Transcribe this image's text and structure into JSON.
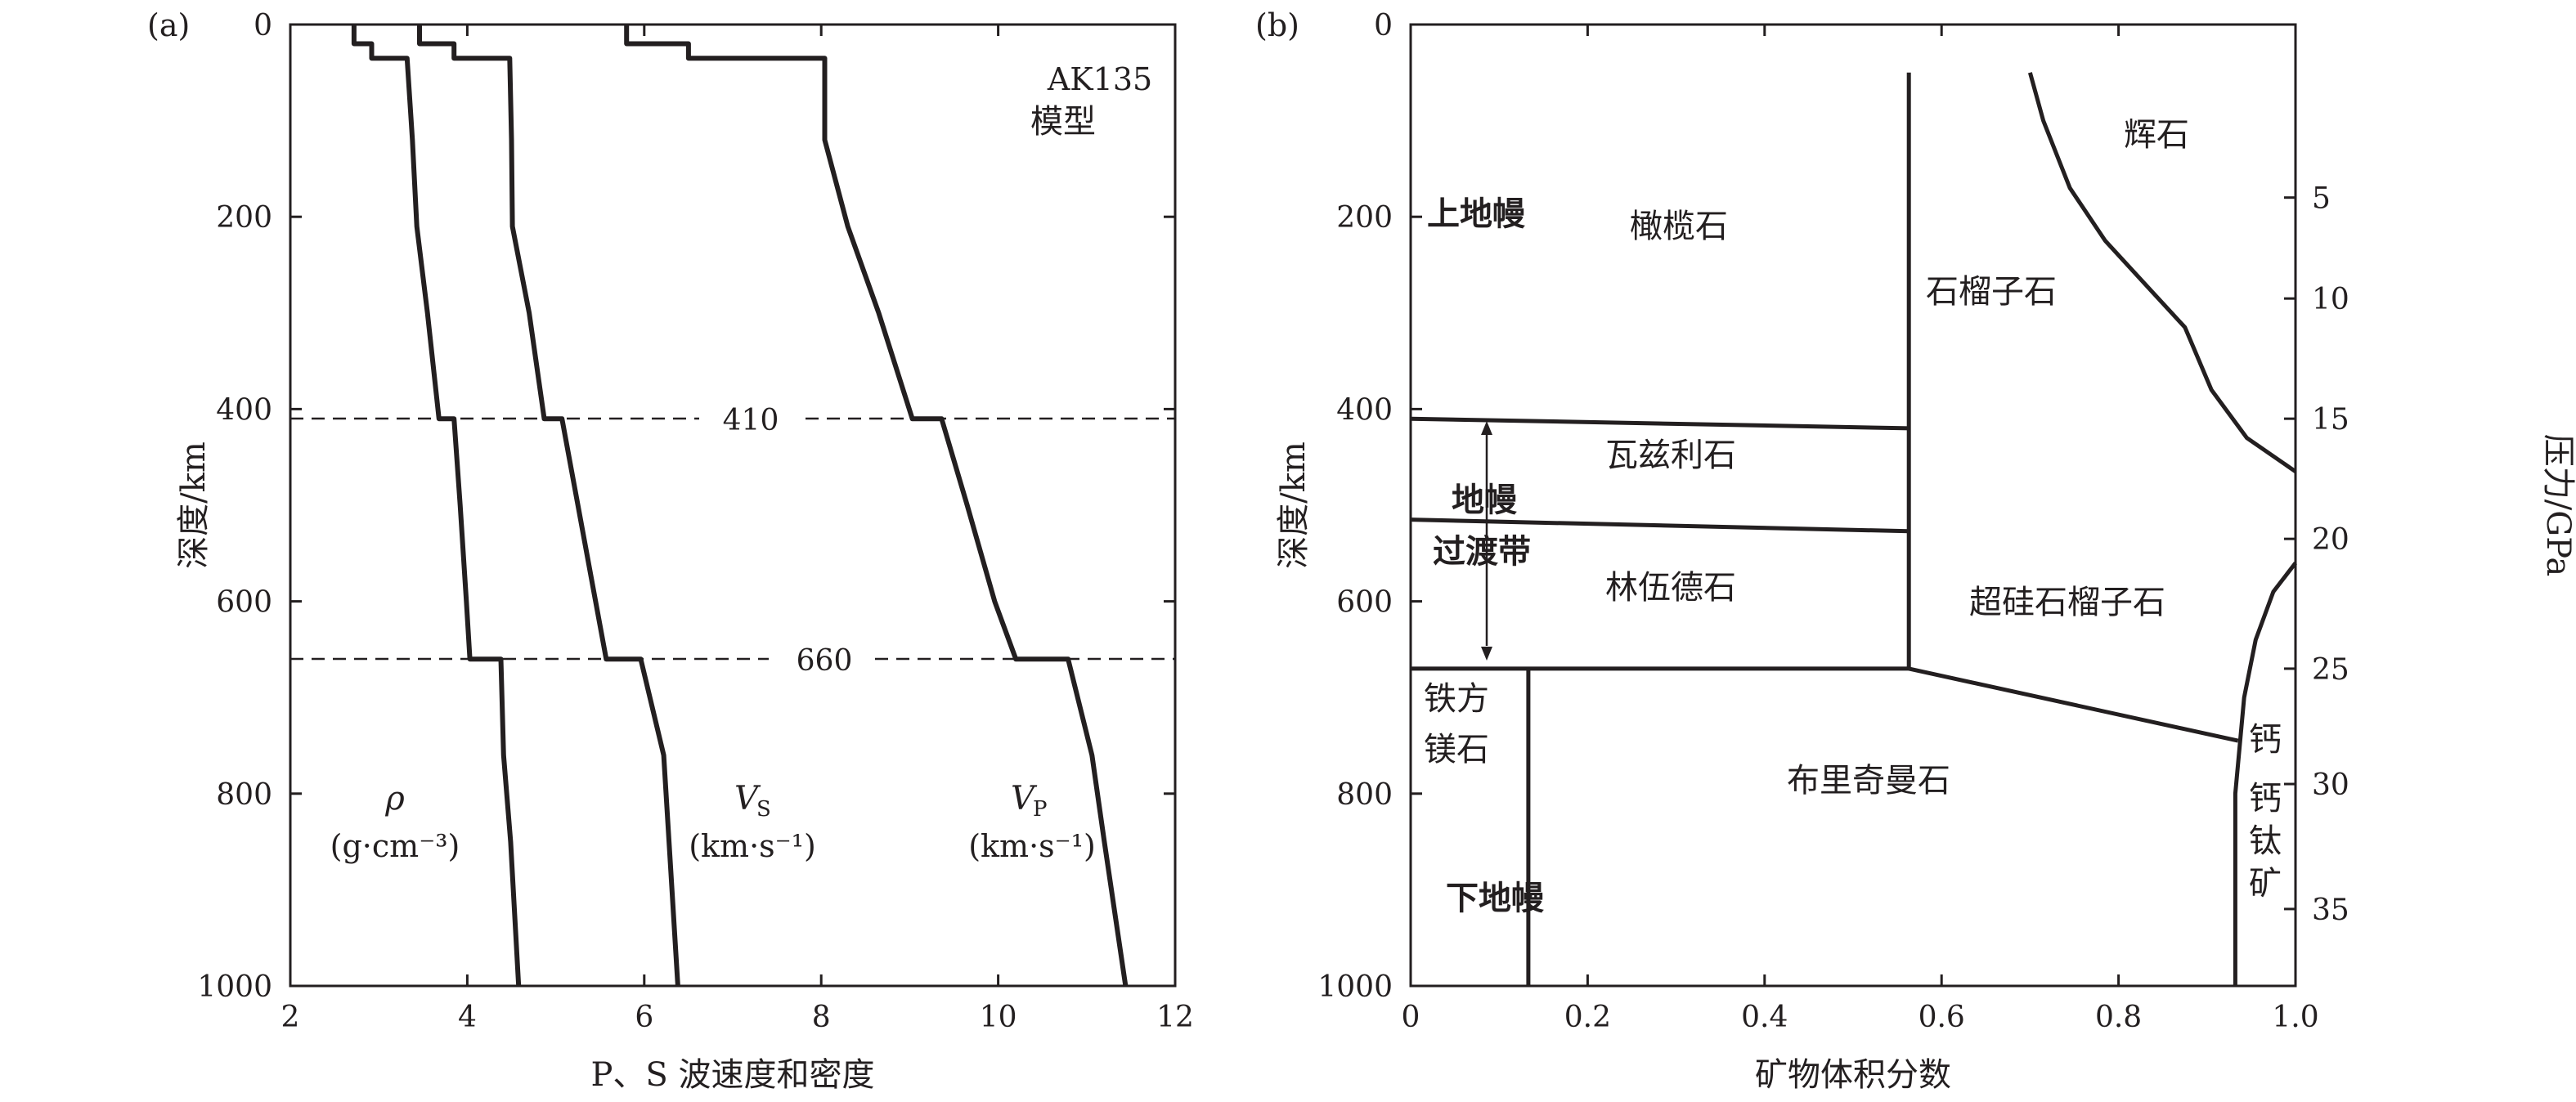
{
  "panel_a": {
    "label": "(a)",
    "model_line1": "AK135",
    "model_line2": "模型",
    "xlabel": "P、S 波速度和密度",
    "ylabel": "深度/km",
    "d410": "410",
    "d660": "660",
    "rho": {
      "sym": "ρ",
      "unit": "(g·cm⁻³)"
    },
    "vs": {
      "sym": "V",
      "sub": "S",
      "unit": "(km·s⁻¹)"
    },
    "vp": {
      "sym": "V",
      "sub": "P",
      "unit": "(km·s⁻¹)"
    }
  },
  "panel_b": {
    "label": "(b)",
    "xlabel": "矿物体积分数",
    "ylabel": "深度/km",
    "y2label": "压力/GPa",
    "upper_mantle": "上地幔",
    "tz_line1": "地幔",
    "tz_line2": "过渡带",
    "lower_mantle": "下地幔",
    "olivine": "橄榄石",
    "garnet": "石榴子石",
    "pyroxene": "辉石",
    "wadsleyite": "瓦兹利石",
    "ringwoodite": "林伍德石",
    "majorite": "超硅石榴子石",
    "ferropericlase_1": "铁方",
    "ferropericlase_2": "镁石",
    "bridgmanite": "布里奇曼石",
    "capv_1": "钙",
    "capv_2": "钙",
    "capv_3": "钛",
    "capv_4": "矿"
  },
  "chart_data": [
    {
      "type": "line",
      "panel": "(a)",
      "xlabel": "P、S 波速度和密度",
      "ylabel": "深度/km",
      "xlim": [
        2,
        12
      ],
      "ylim": [
        1000,
        0
      ],
      "xticks": [
        2,
        4,
        6,
        8,
        10,
        12
      ],
      "yticks": [
        0,
        200,
        400,
        600,
        800,
        1000
      ],
      "annotations": [
        "AK135 模型",
        "410",
        "660"
      ],
      "reference_lines": [
        410,
        660
      ],
      "series": [
        {
          "name": "ρ (g·cm⁻³)",
          "points": [
            [
              2.72,
              0
            ],
            [
              2.72,
              20
            ],
            [
              2.92,
              20
            ],
            [
              2.92,
              35
            ],
            [
              3.32,
              35
            ],
            [
              3.38,
              120
            ],
            [
              3.43,
              210
            ],
            [
              3.55,
              300
            ],
            [
              3.68,
              410
            ],
            [
              3.85,
              410
            ],
            [
              3.92,
              500
            ],
            [
              3.99,
              600
            ],
            [
              4.03,
              660
            ],
            [
              4.38,
              660
            ],
            [
              4.41,
              760
            ],
            [
              4.49,
              850
            ],
            [
              4.58,
              1000
            ]
          ]
        },
        {
          "name": "VS (km·s⁻¹)",
          "points": [
            [
              3.46,
              0
            ],
            [
              3.46,
              20
            ],
            [
              3.85,
              20
            ],
            [
              3.85,
              35
            ],
            [
              4.48,
              35
            ],
            [
              4.5,
              120
            ],
            [
              4.51,
              210
            ],
            [
              4.7,
              300
            ],
            [
              4.87,
              410
            ],
            [
              5.07,
              410
            ],
            [
              5.25,
              500
            ],
            [
              5.45,
              600
            ],
            [
              5.57,
              660
            ],
            [
              5.96,
              660
            ],
            [
              6.22,
              760
            ],
            [
              6.28,
              850
            ],
            [
              6.38,
              1000
            ]
          ]
        },
        {
          "name": "VP (km·s⁻¹)",
          "points": [
            [
              5.8,
              0
            ],
            [
              5.8,
              20
            ],
            [
              6.5,
              20
            ],
            [
              6.5,
              35
            ],
            [
              8.04,
              35
            ],
            [
              8.04,
              120
            ],
            [
              8.3,
              210
            ],
            [
              8.65,
              300
            ],
            [
              9.03,
              410
            ],
            [
              9.36,
              410
            ],
            [
              9.65,
              500
            ],
            [
              9.96,
              600
            ],
            [
              10.2,
              660
            ],
            [
              10.79,
              660
            ],
            [
              11.06,
              760
            ],
            [
              11.2,
              850
            ],
            [
              11.44,
              1000
            ]
          ]
        }
      ]
    },
    {
      "type": "area",
      "panel": "(b)",
      "xlabel": "矿物体积分数",
      "ylabel": "深度/km",
      "y2label": "压力/GPa",
      "xlim": [
        0,
        1.0
      ],
      "ylim": [
        1000,
        0
      ],
      "xticks": [
        0,
        0.2,
        0.4,
        0.6,
        0.8,
        1.0
      ],
      "yticks": [
        0,
        200,
        400,
        600,
        800,
        1000
      ],
      "y2ticks": [
        5,
        10,
        15,
        20,
        25,
        30,
        35
      ],
      "boundaries": [
        {
          "from": "0.563 @ 50 km",
          "to": "0.563 @ 670 km",
          "points": [
            [
              0.563,
              50
            ],
            [
              0.563,
              670
            ]
          ]
        },
        {
          "points": [
            [
              0,
              410
            ],
            [
              0.563,
              420
            ]
          ]
        },
        {
          "points": [
            [
              0,
              515
            ],
            [
              0.563,
              527
            ]
          ]
        },
        {
          "points": [
            [
              0,
              670
            ],
            [
              0.563,
              670
            ]
          ]
        },
        {
          "points": [
            [
              0.563,
              670
            ],
            [
              0.935,
              745
            ]
          ]
        },
        {
          "points": [
            [
              0.133,
              670
            ],
            [
              0.133,
              1000
            ]
          ]
        },
        {
          "points": [
            [
              0.7,
              50
            ],
            [
              0.715,
              100
            ],
            [
              0.745,
              170
            ],
            [
              0.785,
              225
            ],
            [
              0.84,
              280
            ],
            [
              0.875,
              315
            ],
            [
              0.905,
              380
            ],
            [
              0.945,
              430
            ],
            [
              1.0,
              465
            ]
          ]
        },
        {
          "points": [
            [
              1.0,
              560
            ],
            [
              0.975,
              590
            ],
            [
              0.955,
              640
            ],
            [
              0.942,
              700
            ],
            [
              0.932,
              800
            ],
            [
              0.932,
              1000
            ]
          ]
        }
      ],
      "regions": [
        "上地幔",
        "地幔过渡带",
        "下地幔",
        "橄榄石",
        "石榴子石",
        "辉石",
        "瓦兹利石",
        "林伍德石",
        "超硅石榴子石",
        "铁方镁石",
        "布里奇曼石",
        "钙钙钛矿"
      ]
    }
  ]
}
